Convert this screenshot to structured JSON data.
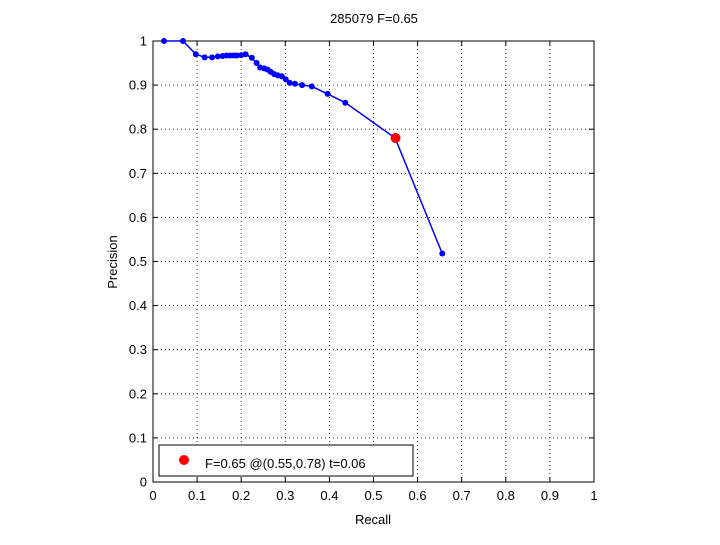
{
  "chart_data": {
    "type": "line",
    "title": "285079 F=0.65",
    "xlabel": "Recall",
    "ylabel": "Precision",
    "xlim": [
      0,
      1
    ],
    "ylim": [
      0,
      1
    ],
    "grid": true,
    "xticks": [
      "0",
      "0.1",
      "0.2",
      "0.3",
      "0.4",
      "0.5",
      "0.6",
      "0.7",
      "0.8",
      "0.9",
      "1"
    ],
    "yticks": [
      "0",
      "0.1",
      "0.2",
      "0.3",
      "0.4",
      "0.5",
      "0.6",
      "0.7",
      "0.8",
      "0.9",
      "1"
    ],
    "series": [
      {
        "color": "#0000ff",
        "x": [
          0.025,
          0.068,
          0.097,
          0.117,
          0.134,
          0.147,
          0.158,
          0.167,
          0.175,
          0.183,
          0.19,
          0.2,
          0.21,
          0.224,
          0.235,
          0.243,
          0.252,
          0.26,
          0.267,
          0.275,
          0.283,
          0.292,
          0.301,
          0.31,
          0.322,
          0.338,
          0.36,
          0.396,
          0.436,
          0.549,
          0.656
        ],
        "y": [
          1.0,
          1.0,
          0.97,
          0.963,
          0.963,
          0.965,
          0.966,
          0.967,
          0.967,
          0.967,
          0.967,
          0.968,
          0.97,
          0.962,
          0.95,
          0.94,
          0.938,
          0.935,
          0.93,
          0.925,
          0.922,
          0.92,
          0.913,
          0.905,
          0.903,
          0.9,
          0.897,
          0.88,
          0.86,
          0.78,
          0.518
        ]
      }
    ],
    "highlight": {
      "x": 0.55,
      "y": 0.78,
      "color": "#ff0000",
      "label": "F=0.65 @(0.55,0.78) t=0.06"
    },
    "legend": {
      "position": "bottom-left",
      "entries": [
        "F=0.65 @(0.55,0.78) t=0.06"
      ]
    }
  }
}
